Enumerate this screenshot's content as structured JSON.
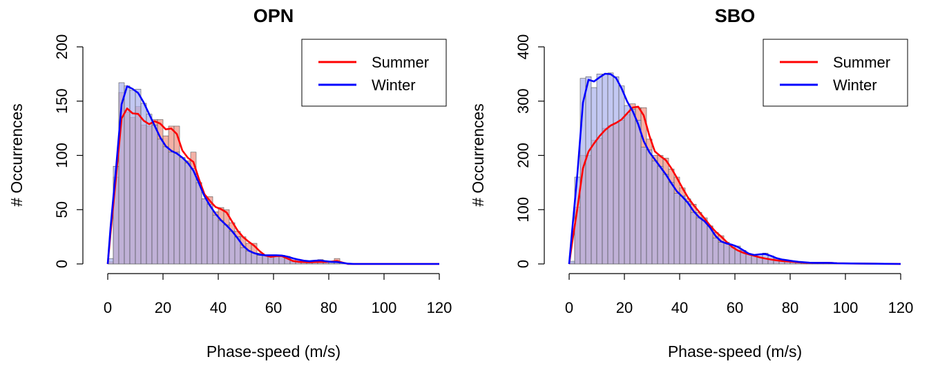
{
  "chart_data": [
    {
      "type": "histogram",
      "title": "OPN",
      "xlabel": "Phase-speed (m/s)",
      "ylabel": "# Occurrences",
      "xlim": [
        0,
        120
      ],
      "ylim": [
        0,
        200
      ],
      "x_ticks": [
        "0",
        "20",
        "40",
        "60",
        "80",
        "100",
        "120"
      ],
      "y_ticks": [
        "0",
        "50",
        "100",
        "150",
        "200"
      ],
      "bin_width": 2,
      "legend_position": "top-right",
      "x": [
        1,
        3,
        5,
        7,
        9,
        11,
        13,
        15,
        17,
        19,
        21,
        23,
        25,
        27,
        29,
        31,
        33,
        35,
        37,
        39,
        41,
        43,
        45,
        47,
        49,
        51,
        53,
        55,
        57,
        59,
        61,
        63,
        65,
        67,
        69,
        71,
        73,
        75,
        77,
        79,
        81,
        83,
        85,
        87,
        89
      ],
      "series": [
        {
          "name": "Summer",
          "color": "#ff0000",
          "fill": "#f2a89c",
          "values": [
            2,
            80,
            158,
            140,
            135,
            145,
            128,
            127,
            133,
            133,
            118,
            127,
            127,
            98,
            95,
            103,
            75,
            60,
            62,
            48,
            52,
            50,
            38,
            30,
            25,
            19,
            19,
            10,
            8,
            5,
            8,
            8,
            5,
            2,
            2,
            2,
            1,
            2,
            2,
            2,
            1,
            5,
            0,
            0,
            0
          ]
        },
        {
          "name": "Winter",
          "color": "#0000ff",
          "fill": "#aab0ec",
          "values": [
            5,
            90,
            167,
            164,
            160,
            161,
            148,
            138,
            128,
            115,
            108,
            103,
            103,
            98,
            93,
            88,
            75,
            60,
            55,
            45,
            40,
            36,
            30,
            25,
            15,
            12,
            10,
            8,
            8,
            8,
            8,
            8,
            7,
            5,
            4,
            3,
            2,
            3,
            4,
            2,
            2,
            2,
            1,
            0,
            0
          ]
        }
      ]
    },
    {
      "type": "histogram",
      "title": "SBO",
      "xlabel": "Phase-speed (m/s)",
      "ylabel": "# Occurrences",
      "xlim": [
        0,
        120
      ],
      "ylim": [
        0,
        400
      ],
      "x_ticks": [
        "0",
        "20",
        "40",
        "60",
        "80",
        "100",
        "120"
      ],
      "y_ticks": [
        "0",
        "100",
        "200",
        "300",
        "400"
      ],
      "bin_width": 2,
      "legend_position": "top-right",
      "x": [
        1,
        3,
        5,
        7,
        9,
        11,
        13,
        15,
        17,
        19,
        21,
        23,
        25,
        27,
        29,
        31,
        33,
        35,
        37,
        39,
        41,
        43,
        45,
        47,
        49,
        51,
        53,
        55,
        57,
        59,
        61,
        63,
        65,
        67,
        69,
        71,
        73,
        75,
        77,
        79,
        81,
        83,
        85,
        87,
        89,
        91,
        93,
        95,
        97,
        99
      ],
      "series": [
        {
          "name": "Summer",
          "color": "#ff0000",
          "fill": "#f2a89c",
          "values": [
            2,
            105,
            200,
            200,
            228,
            232,
            250,
            255,
            260,
            265,
            275,
            295,
            288,
            288,
            230,
            200,
            200,
            195,
            175,
            160,
            140,
            120,
            110,
            95,
            85,
            70,
            58,
            52,
            40,
            30,
            25,
            20,
            18,
            15,
            12,
            10,
            8,
            7,
            5,
            5,
            4,
            3,
            2,
            2,
            2,
            2,
            2,
            2,
            1,
            1
          ]
        },
        {
          "name": "Winter",
          "color": "#0000ff",
          "fill": "#aab0ec",
          "values": [
            5,
            160,
            342,
            345,
            325,
            350,
            350,
            352,
            345,
            328,
            292,
            285,
            265,
            215,
            210,
            190,
            180,
            165,
            150,
            130,
            125,
            115,
            95,
            85,
            80,
            70,
            48,
            40,
            38,
            35,
            33,
            25,
            18,
            15,
            18,
            20,
            15,
            10,
            8,
            7,
            5,
            4,
            3,
            2,
            2,
            2,
            2,
            2,
            1,
            1
          ]
        }
      ]
    }
  ]
}
